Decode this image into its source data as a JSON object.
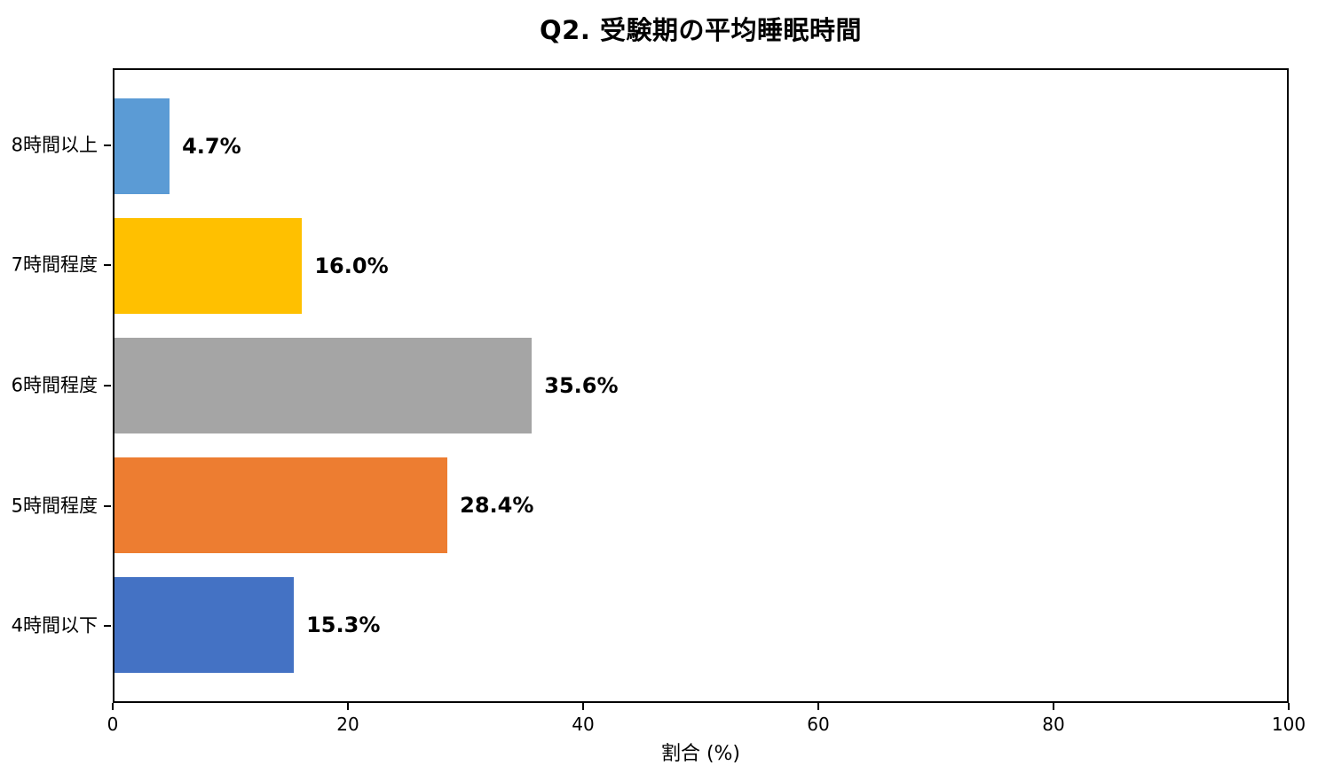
{
  "chart_data": {
    "type": "bar",
    "orientation": "horizontal",
    "title": "Q2. 受験期の平均睡眠時間",
    "categories": [
      "8時間以上",
      "7時間程度",
      "6時間程度",
      "5時間程度",
      "4時間以下"
    ],
    "values": [
      4.7,
      16.0,
      35.6,
      28.4,
      15.3
    ],
    "value_labels": [
      "4.7%",
      "16.0%",
      "35.6%",
      "28.4%",
      "15.3%"
    ],
    "bar_colors": [
      "#5b9bd5",
      "#ffc000",
      "#a5a5a5",
      "#ed7d31",
      "#4472c4"
    ],
    "xlabel": "割合 (%)",
    "ylabel": "",
    "xlim": [
      0,
      100
    ],
    "x_ticks": [
      0,
      20,
      40,
      60,
      80,
      100
    ],
    "grid": false,
    "legend": null,
    "text_color": "#000000",
    "spine_color": "#000000",
    "background_color": "#ffffff"
  }
}
